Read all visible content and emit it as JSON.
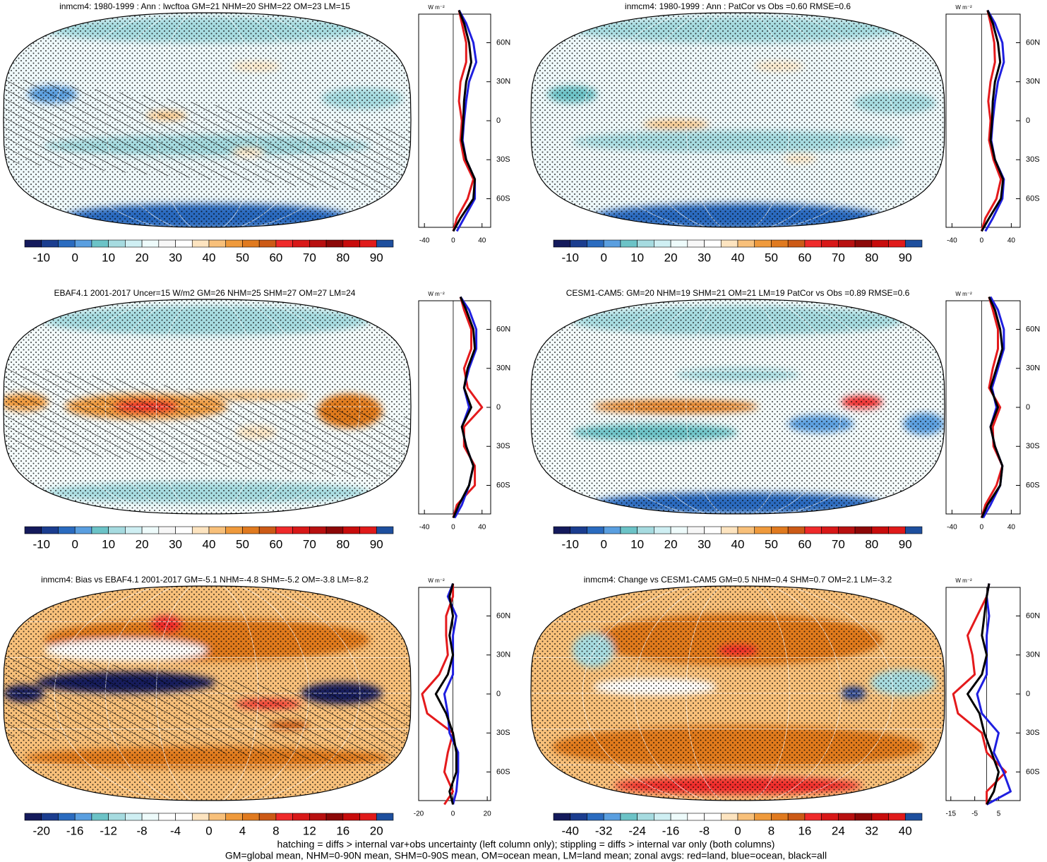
{
  "chart_data": [
    {
      "type": "map-zonal",
      "title": "inmcm4: 1980-1999 : Ann : lwcftoa GM=21 NHM=20 SHM=22 OM=23 LM=15",
      "units": "W m⁻²",
      "hatching": true,
      "stippling": true,
      "y": [
        -85,
        -75,
        -60,
        -45,
        -30,
        -15,
        0,
        15,
        30,
        45,
        60,
        75,
        85
      ],
      "series": [
        {
          "color": "#e41a1c",
          "values": [
            0,
            5,
            20,
            28,
            15,
            10,
            12,
            8,
            10,
            18,
            18,
            12,
            8
          ]
        },
        {
          "color": "#1f1fe0",
          "values": [
            5,
            15,
            30,
            30,
            18,
            13,
            15,
            18,
            22,
            32,
            28,
            18,
            8
          ]
        },
        {
          "color": "#000000",
          "values": [
            0,
            10,
            28,
            30,
            18,
            12,
            14,
            15,
            18,
            25,
            22,
            15,
            8
          ]
        }
      ],
      "xlim": [
        -48,
        52
      ],
      "xticks": [
        -40,
        0,
        40
      ],
      "ylim": [
        -82,
        82
      ],
      "yticks": [
        {
          "value": -60,
          "label": "60S"
        },
        {
          "value": -30,
          "label": "30S"
        },
        0,
        {
          "value": 30,
          "label": "30N"
        },
        {
          "value": 60,
          "label": "60N"
        }
      ],
      "colorbar": {
        "lim": [
          -15,
          95
        ],
        "ticks": [
          -10,
          0,
          10,
          20,
          30,
          40,
          50,
          60,
          70,
          80,
          90
        ],
        "colors": [
          "#141a5c",
          "#1b3d8f",
          "#2a6bbf",
          "#5a9fe0",
          "#6cc3c7",
          "#a6dbe0",
          "#cfeff3",
          "#eefbfb",
          "#f7f7f7",
          "#ffffff",
          "#fde4c0",
          "#f8c07a",
          "#ef9a3c",
          "#e07a1f",
          "#cc5a16",
          "#ef2a2a",
          "#d81818",
          "#b81010",
          "#8c0808",
          "#c80c0c",
          "#e01a1a",
          "#1e4f9e"
        ]
      }
    },
    {
      "type": "map-zonal",
      "title": "inmcm4: 1980-1999 : Ann : PatCor vs Obs =0.60 RMSE=0.6",
      "units": "W m⁻²",
      "hatching": false,
      "stippling": true,
      "y": [
        -85,
        -75,
        -60,
        -45,
        -30,
        -15,
        0,
        15,
        30,
        45,
        60,
        75,
        85
      ],
      "series": [
        {
          "color": "#e41a1c",
          "values": [
            0,
            5,
            20,
            26,
            16,
            10,
            12,
            9,
            12,
            18,
            17,
            12,
            8
          ]
        },
        {
          "color": "#1f1fe0",
          "values": [
            5,
            15,
            28,
            30,
            18,
            13,
            15,
            18,
            22,
            30,
            28,
            18,
            8
          ]
        },
        {
          "color": "#000000",
          "values": [
            0,
            10,
            26,
            29,
            18,
            12,
            14,
            15,
            18,
            25,
            22,
            15,
            8
          ]
        }
      ],
      "xlim": [
        -48,
        52
      ],
      "xticks": [
        -40,
        0,
        40
      ],
      "ylim": [
        -82,
        82
      ],
      "yticks": [
        {
          "value": -60,
          "label": "60S"
        },
        {
          "value": -30,
          "label": "30S"
        },
        0,
        {
          "value": 30,
          "label": "30N"
        },
        {
          "value": 60,
          "label": "60N"
        }
      ],
      "colorbar": {
        "lim": [
          -15,
          95
        ],
        "ticks": [
          -10,
          0,
          10,
          20,
          30,
          40,
          50,
          60,
          70,
          80,
          90
        ],
        "colors": [
          "#141a5c",
          "#1b3d8f",
          "#2a6bbf",
          "#5a9fe0",
          "#6cc3c7",
          "#a6dbe0",
          "#cfeff3",
          "#eefbfb",
          "#f7f7f7",
          "#ffffff",
          "#fde4c0",
          "#f8c07a",
          "#ef9a3c",
          "#e07a1f",
          "#cc5a16",
          "#ef2a2a",
          "#d81818",
          "#b81010",
          "#8c0808",
          "#c80c0c",
          "#e01a1a",
          "#1e4f9e"
        ]
      }
    },
    {
      "type": "map-zonal",
      "title": "EBAF4.1 2001-2017 Uncer=15 W/m2 GM=26 NHM=25 SHM=27 OM=27 LM=24",
      "units": "W m⁻²",
      "hatching": true,
      "stippling": true,
      "y": [
        -85,
        -75,
        -60,
        -45,
        -30,
        -15,
        0,
        15,
        30,
        45,
        60,
        75,
        85
      ],
      "series": [
        {
          "color": "#e41a1c",
          "values": [
            0,
            5,
            30,
            30,
            15,
            15,
            40,
            20,
            15,
            25,
            25,
            15,
            10
          ]
        },
        {
          "color": "#1f1fe0",
          "values": [
            2,
            12,
            22,
            28,
            18,
            12,
            22,
            15,
            22,
            32,
            32,
            22,
            10
          ]
        },
        {
          "color": "#000000",
          "values": [
            0,
            8,
            22,
            28,
            18,
            12,
            25,
            15,
            20,
            30,
            28,
            18,
            10
          ]
        }
      ],
      "xlim": [
        -48,
        52
      ],
      "xticks": [
        -40,
        0,
        40
      ],
      "ylim": [
        -82,
        82
      ],
      "yticks": [
        {
          "value": -60,
          "label": "60S"
        },
        {
          "value": -30,
          "label": "30S"
        },
        0,
        {
          "value": 30,
          "label": "30N"
        },
        {
          "value": 60,
          "label": "60N"
        }
      ],
      "colorbar": {
        "lim": [
          -15,
          95
        ],
        "ticks": [
          -10,
          0,
          10,
          20,
          30,
          40,
          50,
          60,
          70,
          80,
          90
        ],
        "colors": [
          "#141a5c",
          "#1b3d8f",
          "#2a6bbf",
          "#5a9fe0",
          "#6cc3c7",
          "#a6dbe0",
          "#cfeff3",
          "#eefbfb",
          "#f7f7f7",
          "#ffffff",
          "#fde4c0",
          "#f8c07a",
          "#ef9a3c",
          "#e07a1f",
          "#cc5a16",
          "#ef2a2a",
          "#d81818",
          "#b81010",
          "#8c0808",
          "#c80c0c",
          "#e01a1a",
          "#1e4f9e"
        ]
      }
    },
    {
      "type": "map-zonal",
      "title": "CESM1-CAM5: GM=20 NHM=19 SHM=21 OM=21 LM=19 PatCor vs Obs =0.89 RMSE=0.6",
      "units": "W m⁻²",
      "hatching": false,
      "stippling": true,
      "y": [
        -85,
        -75,
        -60,
        -45,
        -30,
        -15,
        0,
        15,
        30,
        45,
        60,
        75,
        85
      ],
      "series": [
        {
          "color": "#e41a1c",
          "values": [
            0,
            5,
            20,
            28,
            16,
            15,
            25,
            10,
            15,
            22,
            22,
            15,
            10
          ]
        },
        {
          "color": "#1f1fe0",
          "values": [
            2,
            12,
            25,
            28,
            18,
            12,
            20,
            14,
            22,
            30,
            30,
            22,
            12
          ]
        },
        {
          "color": "#000000",
          "values": [
            0,
            8,
            25,
            28,
            18,
            12,
            22,
            12,
            20,
            28,
            25,
            18,
            10
          ]
        }
      ],
      "xlim": [
        -48,
        52
      ],
      "xticks": [
        -40,
        0,
        40
      ],
      "ylim": [
        -82,
        82
      ],
      "yticks": [
        {
          "value": -60,
          "label": "60S"
        },
        {
          "value": -30,
          "label": "30S"
        },
        0,
        {
          "value": 30,
          "label": "30N"
        },
        {
          "value": 60,
          "label": "60N"
        }
      ],
      "colorbar": {
        "lim": [
          -15,
          95
        ],
        "ticks": [
          -10,
          0,
          10,
          20,
          30,
          40,
          50,
          60,
          70,
          80,
          90
        ],
        "colors": [
          "#141a5c",
          "#1b3d8f",
          "#2a6bbf",
          "#5a9fe0",
          "#6cc3c7",
          "#a6dbe0",
          "#cfeff3",
          "#eefbfb",
          "#f7f7f7",
          "#ffffff",
          "#fde4c0",
          "#f8c07a",
          "#ef9a3c",
          "#e07a1f",
          "#cc5a16",
          "#ef2a2a",
          "#d81818",
          "#b81010",
          "#8c0808",
          "#c80c0c",
          "#e01a1a",
          "#1e4f9e"
        ]
      }
    },
    {
      "type": "map-zonal",
      "title": "inmcm4: Bias vs EBAF4.1 2001-2017 GM=-5.1 NHM=-4.8 SHM=-5.2 OM=-3.8 LM=-8.2",
      "units": "W m⁻²",
      "hatching": true,
      "stippling": true,
      "y": [
        -85,
        -75,
        -60,
        -45,
        -30,
        -15,
        0,
        15,
        30,
        45,
        60,
        75,
        85
      ],
      "series": [
        {
          "color": "#e41a1c",
          "values": [
            -5,
            0,
            -5,
            -3,
            0,
            -15,
            -18,
            -8,
            -3,
            -4,
            -4,
            0,
            0
          ]
        },
        {
          "color": "#1f1fe0",
          "values": [
            0,
            2,
            3,
            3,
            -2,
            -3,
            -5,
            0,
            0,
            0,
            2,
            -3,
            0
          ]
        },
        {
          "color": "#000000",
          "values": [
            0,
            -2,
            2,
            2,
            0,
            -4,
            -10,
            -3,
            0,
            -2,
            0,
            -2,
            0
          ]
        }
      ],
      "xlim": [
        -20,
        22
      ],
      "xticks": [
        -20,
        0,
        20
      ],
      "ylim": [
        -82,
        82
      ],
      "yticks": [
        {
          "value": -60,
          "label": "60S"
        },
        {
          "value": -30,
          "label": "30S"
        },
        0,
        {
          "value": 30,
          "label": "30N"
        },
        {
          "value": 60,
          "label": "60N"
        }
      ],
      "colorbar": {
        "lim": [
          -22,
          22
        ],
        "ticks": [
          -20,
          -16,
          -12,
          -8,
          -4,
          0,
          4,
          8,
          12,
          16,
          20
        ],
        "colors": [
          "#141a5c",
          "#1b3d8f",
          "#2a6bbf",
          "#5a9fe0",
          "#6cc3c7",
          "#a6dbe0",
          "#cfeff3",
          "#eefbfb",
          "#ffffff",
          "#ffffff",
          "#fde4c0",
          "#f8c07a",
          "#ef9a3c",
          "#e07a1f",
          "#cc5a16",
          "#ef2a2a",
          "#d81818",
          "#b81010",
          "#8c0808",
          "#c80c0c",
          "#e01a1a",
          "#1e4f9e"
        ]
      }
    },
    {
      "type": "map-zonal",
      "title": "inmcm4: Change vs CESM1-CAM5 GM=0.5 NHM=0.4 SHM=0.7 OM=2.1 LM=-3.2",
      "units": "W m⁻²",
      "hatching": false,
      "stippling": true,
      "y": [
        -85,
        -75,
        -60,
        -45,
        -30,
        -15,
        0,
        15,
        30,
        45,
        60,
        75,
        85
      ],
      "series": [
        {
          "color": "#e41a1c",
          "values": [
            0,
            0,
            8,
            0,
            -2,
            -12,
            -14,
            -5,
            -6,
            -8,
            -4,
            0,
            1
          ]
        },
        {
          "color": "#1f1fe0",
          "values": [
            0,
            10,
            7,
            3,
            5,
            -2,
            -4,
            0,
            0,
            0,
            1,
            0,
            1
          ]
        },
        {
          "color": "#000000",
          "values": [
            0,
            3,
            5,
            2,
            -1,
            -3,
            -8,
            -2,
            0,
            -2,
            -1,
            0,
            1
          ]
        }
      ],
      "xlim": [
        -17,
        14
      ],
      "xticks": [
        -15,
        -5,
        5
      ],
      "ylim": [
        -82,
        82
      ],
      "yticks": [
        {
          "value": -60,
          "label": "60S"
        },
        {
          "value": -30,
          "label": "30S"
        },
        0,
        {
          "value": 30,
          "label": "30N"
        },
        {
          "value": 60,
          "label": "60N"
        }
      ],
      "colorbar": {
        "lim": [
          -44,
          44
        ],
        "ticks": [
          -40,
          -32,
          -24,
          -16,
          -8,
          0,
          8,
          16,
          24,
          32,
          40
        ],
        "colors": [
          "#141a5c",
          "#1b3d8f",
          "#2a6bbf",
          "#5a9fe0",
          "#6cc3c7",
          "#a6dbe0",
          "#cfeff3",
          "#eefbfb",
          "#ffffff",
          "#ffffff",
          "#fde4c0",
          "#f8c07a",
          "#ef9a3c",
          "#e07a1f",
          "#cc5a16",
          "#ef2a2a",
          "#d81818",
          "#b81010",
          "#8c0808",
          "#c80c0c",
          "#e01a1a",
          "#1e4f9e"
        ]
      }
    }
  ],
  "notes": [
    "hatching = diffs > internal var+obs uncertainty (left column only); stippling = diffs > internal var only (both columns)",
    "GM=global mean, NHM=0-90N mean, SHM=0-90S mean, OM=ocean mean, LM=land mean; zonal avgs: red=land, blue=ocean, black=all"
  ]
}
